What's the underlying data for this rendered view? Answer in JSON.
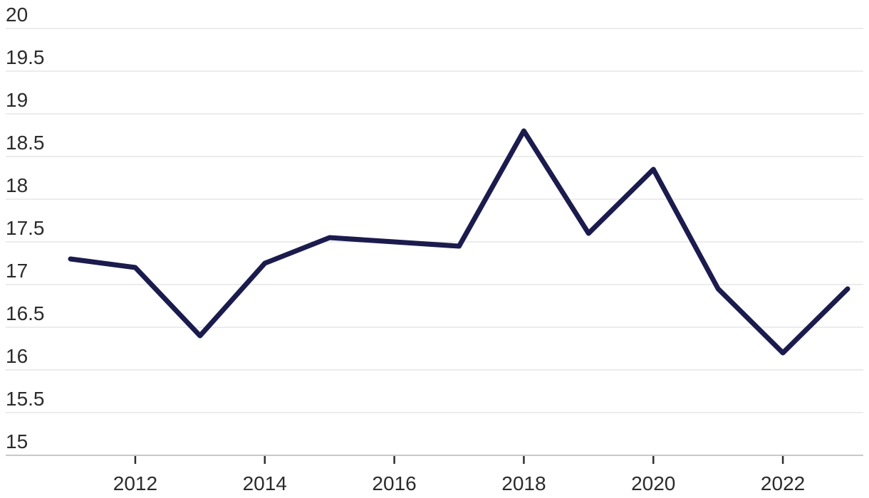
{
  "chart_data": {
    "type": "line",
    "title": "",
    "xlabel": "",
    "ylabel": "",
    "x": [
      2011,
      2012,
      2013,
      2014,
      2015,
      2016,
      2017,
      2018,
      2019,
      2020,
      2021,
      2022,
      2023
    ],
    "values": [
      17.3,
      17.2,
      16.4,
      17.25,
      17.55,
      17.5,
      17.45,
      18.8,
      17.6,
      18.35,
      16.95,
      16.2,
      16.95
    ],
    "ylim": [
      15,
      20
    ],
    "ytick_step": 0.5,
    "ytick_labels": [
      "15",
      "15.5",
      "16",
      "16.5",
      "17",
      "17.5",
      "18",
      "18.5",
      "19",
      "19.5",
      "20"
    ],
    "xtick_years": [
      2012,
      2014,
      2016,
      2018,
      2020,
      2022
    ],
    "grid": "horizontal-only",
    "legend": "none",
    "line_width": 7,
    "colors": {
      "line": "#1b1b4e",
      "gridline": "#e6e6e6",
      "axis_line": "#c9c9c9",
      "tick_mark": "#2e2e2e",
      "label_text": "#2b2b2b",
      "background": "#ffffff"
    }
  }
}
